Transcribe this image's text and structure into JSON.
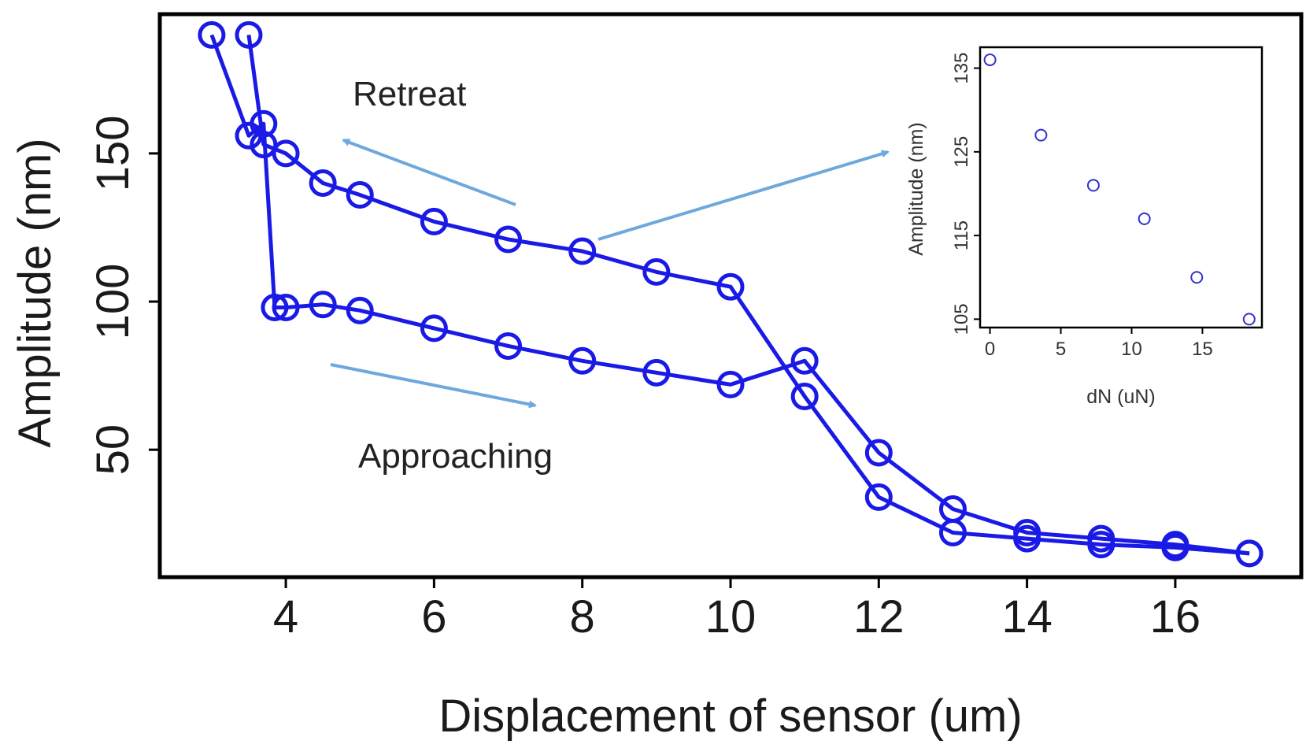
{
  "colors": {
    "series": "#1a1ae6",
    "arrow": "#6ea8dc",
    "frame": "#000000",
    "inset_marker": "#3333cc"
  },
  "chart_data": [
    {
      "type": "line",
      "title": "",
      "xlabel": "Displacement of sensor (um)",
      "ylabel": "Amplitude (nm)",
      "xlim": [
        2.3,
        17.7
      ],
      "ylim": [
        7,
        197
      ],
      "xticks": [
        4,
        6,
        8,
        10,
        12,
        14,
        16
      ],
      "yticks": [
        50,
        100,
        150
      ],
      "marker": "open-circle",
      "series": [
        {
          "name": "Approaching",
          "x": [
            3.0,
            3.5,
            3.7,
            3.85,
            4.0,
            4.5,
            5,
            6,
            7,
            8,
            9,
            10,
            11,
            12,
            13,
            14,
            15,
            16,
            17
          ],
          "y": [
            190,
            156,
            160,
            98,
            98,
            99,
            97,
            91,
            85,
            80,
            76,
            72,
            80,
            49,
            30,
            22,
            20,
            18,
            15
          ]
        },
        {
          "name": "Retreat",
          "x": [
            17,
            16,
            15,
            14,
            13,
            12,
            11,
            10,
            9,
            8,
            7,
            6,
            5,
            4.5,
            4.0,
            3.7,
            3.5
          ],
          "y": [
            15,
            17,
            18,
            20,
            22,
            34,
            68,
            105,
            110,
            117,
            121,
            127,
            136,
            140,
            150,
            153,
            190
          ]
        }
      ],
      "annotations": [
        {
          "text": "Retreat"
        },
        {
          "text": "Approaching"
        }
      ]
    },
    {
      "type": "scatter",
      "title": "",
      "xlabel": "dN (uN)",
      "ylabel": "Amplitude (nm)",
      "xlim": [
        -0.7,
        19.2
      ],
      "ylim": [
        104,
        137.5
      ],
      "xticks": [
        0,
        5,
        10,
        15
      ],
      "yticks": [
        105,
        115,
        125,
        135
      ],
      "marker": "open-circle",
      "x": [
        0,
        3.6,
        7.3,
        10.9,
        14.6,
        18.3
      ],
      "y": [
        136,
        127,
        121,
        117,
        110,
        105
      ]
    }
  ]
}
